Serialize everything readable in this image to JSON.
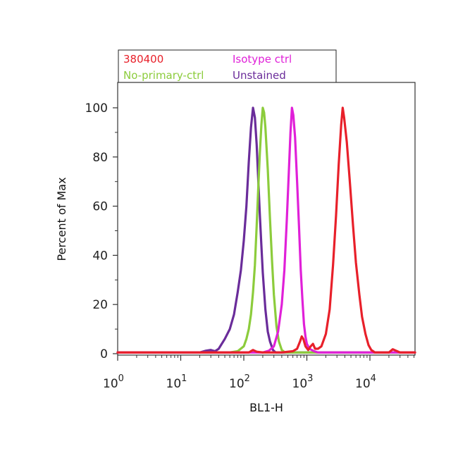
{
  "chart_data": {
    "type": "line",
    "title": "",
    "xlabel": "BL1-H",
    "ylabel": "Percent of Max",
    "x_scale": "log",
    "xlim": [
      1,
      60000
    ],
    "ylim": [
      0,
      110
    ],
    "x_ticks": [
      {
        "value": 1,
        "base": "10",
        "exp": "0"
      },
      {
        "value": 10,
        "base": "10",
        "exp": "1"
      },
      {
        "value": 100,
        "base": "10",
        "exp": "2"
      },
      {
        "value": 1000,
        "base": "10",
        "exp": "3"
      },
      {
        "value": 10000,
        "base": "10",
        "exp": "4"
      }
    ],
    "y_ticks": [
      "0",
      "20",
      "40",
      "60",
      "80",
      "100"
    ],
    "grid": false,
    "legend": {
      "placement": "top",
      "entries": [
        {
          "name": "380400",
          "color": "#e8202a"
        },
        {
          "name": "Isotype ctrl",
          "color": "#e020d8"
        },
        {
          "name": "No-primary-ctrl",
          "color": "#8ccc3c"
        },
        {
          "name": "Unstained",
          "color": "#6a2c9a"
        }
      ]
    },
    "series": [
      {
        "name": "Unstained",
        "color": "#6a2c9a",
        "points": [
          [
            1,
            0.5
          ],
          [
            20,
            0.5
          ],
          [
            25,
            1.2
          ],
          [
            30,
            1.5
          ],
          [
            35,
            1
          ],
          [
            40,
            2
          ],
          [
            50,
            6
          ],
          [
            60,
            10
          ],
          [
            70,
            16
          ],
          [
            80,
            25
          ],
          [
            90,
            34
          ],
          [
            100,
            46
          ],
          [
            110,
            60
          ],
          [
            120,
            78
          ],
          [
            130,
            92
          ],
          [
            140,
            100
          ],
          [
            150,
            96
          ],
          [
            160,
            85
          ],
          [
            170,
            70
          ],
          [
            180,
            56
          ],
          [
            190,
            44
          ],
          [
            200,
            33
          ],
          [
            220,
            18
          ],
          [
            240,
            9
          ],
          [
            260,
            5
          ],
          [
            290,
            1.5
          ],
          [
            320,
            0.5
          ],
          [
            1000,
            0.5
          ],
          [
            60000,
            0.5
          ]
        ]
      },
      {
        "name": "No-primary-ctrl",
        "color": "#8ccc3c",
        "points": [
          [
            1,
            0.5
          ],
          [
            60,
            0.5
          ],
          [
            80,
            1
          ],
          [
            100,
            3
          ],
          [
            110,
            6
          ],
          [
            120,
            10
          ],
          [
            130,
            16
          ],
          [
            140,
            25
          ],
          [
            150,
            36
          ],
          [
            160,
            52
          ],
          [
            170,
            68
          ],
          [
            180,
            82
          ],
          [
            190,
            93
          ],
          [
            200,
            100
          ],
          [
            210,
            98
          ],
          [
            220,
            92
          ],
          [
            240,
            75
          ],
          [
            260,
            55
          ],
          [
            280,
            38
          ],
          [
            300,
            24
          ],
          [
            330,
            11
          ],
          [
            360,
            5
          ],
          [
            400,
            1.5
          ],
          [
            450,
            0.5
          ],
          [
            60000,
            0.5
          ]
        ]
      },
      {
        "name": "Isotype ctrl",
        "color": "#e020d8",
        "points": [
          [
            1,
            0.5
          ],
          [
            200,
            0.5
          ],
          [
            250,
            1.2
          ],
          [
            300,
            3
          ],
          [
            350,
            9
          ],
          [
            400,
            20
          ],
          [
            440,
            34
          ],
          [
            480,
            54
          ],
          [
            520,
            75
          ],
          [
            550,
            90
          ],
          [
            580,
            100
          ],
          [
            610,
            97
          ],
          [
            650,
            88
          ],
          [
            700,
            70
          ],
          [
            750,
            52
          ],
          [
            800,
            34
          ],
          [
            850,
            22
          ],
          [
            900,
            12
          ],
          [
            950,
            7
          ],
          [
            1000,
            4
          ],
          [
            1100,
            2
          ],
          [
            1300,
            1
          ],
          [
            1500,
            0.5
          ],
          [
            60000,
            0.5
          ]
        ]
      },
      {
        "name": "380400",
        "color": "#e8202a",
        "points": [
          [
            1,
            0.5
          ],
          [
            120,
            0.5
          ],
          [
            140,
            1.5
          ],
          [
            160,
            0.8
          ],
          [
            200,
            0.5
          ],
          [
            400,
            0.5
          ],
          [
            600,
            1
          ],
          [
            700,
            2
          ],
          [
            780,
            5
          ],
          [
            830,
            7
          ],
          [
            880,
            6
          ],
          [
            950,
            3
          ],
          [
            1050,
            1.5
          ],
          [
            1150,
            3
          ],
          [
            1250,
            4
          ],
          [
            1350,
            2
          ],
          [
            1500,
            2
          ],
          [
            1700,
            3
          ],
          [
            2000,
            8
          ],
          [
            2300,
            18
          ],
          [
            2600,
            36
          ],
          [
            2900,
            56
          ],
          [
            3200,
            77
          ],
          [
            3500,
            93
          ],
          [
            3700,
            100
          ],
          [
            3900,
            96
          ],
          [
            4300,
            86
          ],
          [
            4800,
            70
          ],
          [
            5400,
            52
          ],
          [
            6000,
            37
          ],
          [
            6800,
            24
          ],
          [
            7500,
            15
          ],
          [
            8500,
            8
          ],
          [
            9500,
            3.5
          ],
          [
            10500,
            1.5
          ],
          [
            12000,
            0.5
          ],
          [
            20000,
            0.5
          ],
          [
            23000,
            1.8
          ],
          [
            26000,
            1.2
          ],
          [
            30000,
            0.5
          ],
          [
            60000,
            0.5
          ]
        ]
      }
    ]
  }
}
